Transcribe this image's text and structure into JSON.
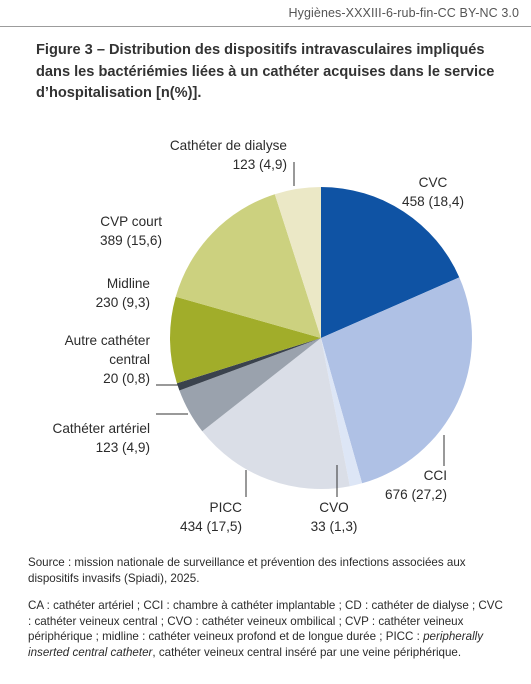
{
  "header": {
    "tag": "Hygiènes-XXXIII-6-rub-fin-CC BY-NC 3.0"
  },
  "figure": {
    "title": "Figure 3 – Distribution des dispositifs intravasculaires impliqués dans les bactériémies liées à un cathéter acquises dans le service d’hospitalisation [n(%)]."
  },
  "chart_data": {
    "type": "pie",
    "title": "Figure 3 – Distribution des dispositifs intravasculaires impliqués dans les bactériémies liées à un cathéter acquises dans le service d’hospitalisation [n(%)].",
    "slices": [
      {
        "name": "CVC",
        "value": 458,
        "percent": 18.4,
        "value_label": "458 (18,4)",
        "color": "#0f53a4"
      },
      {
        "name": "CCI",
        "value": 676,
        "percent": 27.2,
        "value_label": "676 (27,2)",
        "color": "#afc1e5"
      },
      {
        "name": "CVO",
        "value": 33,
        "percent": 1.3,
        "value_label": "33 (1,3)",
        "color": "#dde6f6"
      },
      {
        "name": "PICC",
        "value": 434,
        "percent": 17.5,
        "value_label": "434 (17,5)",
        "color": "#dadee7"
      },
      {
        "name": "Cathéter artériel",
        "value": 123,
        "percent": 4.9,
        "value_label": "123 (4,9)",
        "color": "#9aa2ad"
      },
      {
        "name": "Autre cathéter central",
        "value": 20,
        "percent": 0.8,
        "value_label": "20 (0,8)",
        "color": "#3a424d"
      },
      {
        "name": "Midline",
        "value": 230,
        "percent": 9.3,
        "value_label": "230 (9,3)",
        "color": "#a1ad2a"
      },
      {
        "name": "CVP court",
        "value": 389,
        "percent": 15.6,
        "value_label": "389 (15,6)",
        "color": "#ccd17f"
      },
      {
        "name": "Cathéter de dialyse",
        "value": 123,
        "percent": 4.9,
        "value_label": "123 (4,9)",
        "color": "#ebe8c6"
      }
    ],
    "start": "12 o'clock",
    "direction": "clockwise",
    "legend": "none (direct labels)"
  },
  "notes": {
    "source": "Source : mission nationale de surveillance et prévention des infections associées aux dispositifs invasifs (Spiadi), 2025.",
    "abbreviations_start": "CA : cathéter artériel ; CCI : chambre à cathéter implantable ; CD : cathéter de dialyse ; CVC : cathéter veineux central ; CVO : cathéter veineux ombilical ; CVP : cathéter veineux périphérique ; midline : cathéter veineux profond et de longue durée ; PICC : ",
    "abbreviations_italic": "peripherally inserted central catheter",
    "abbreviations_end": ", cathéter veineux central inséré par une veine périphérique."
  }
}
